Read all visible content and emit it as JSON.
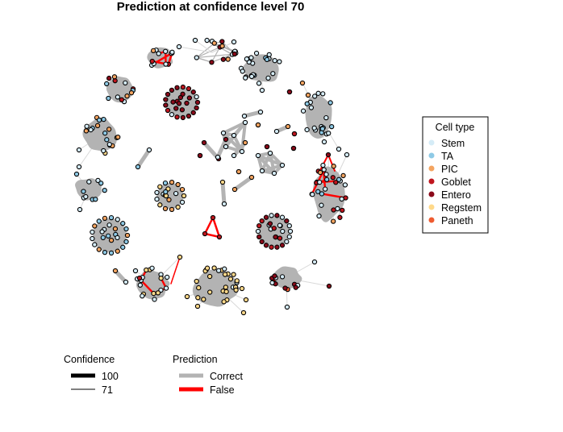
{
  "chart_data": {
    "type": "network",
    "title": "Prediction at confidence level 70",
    "legends": {
      "cell_type": {
        "title": "Cell type",
        "items": [
          {
            "label": "Stem",
            "color": "#d5ecf7"
          },
          {
            "label": "TA",
            "color": "#8ecae6"
          },
          {
            "label": "PIC",
            "color": "#f4a460"
          },
          {
            "label": "Goblet",
            "color": "#c0161e"
          },
          {
            "label": "Entero",
            "color": "#8b0a1a"
          },
          {
            "label": "Regstem",
            "color": "#ffd98a"
          },
          {
            "label": "Paneth",
            "color": "#ef5b30"
          }
        ]
      },
      "confidence": {
        "title": "Confidence",
        "items": [
          {
            "label": "100",
            "weight": 100
          },
          {
            "label": "71",
            "weight": 71
          }
        ]
      },
      "prediction": {
        "title": "Prediction",
        "items": [
          {
            "label": "Correct",
            "color": "#b3b3b3"
          },
          {
            "label": "False",
            "color": "#ff0000"
          }
        ]
      }
    },
    "colors": {
      "node_stroke": "#000000",
      "cluster_fill": "#b3b3b3",
      "correct_edge": "#b3b3b3",
      "false_edge": "#ff0000",
      "light_edge": "#d9d9d9"
    }
  }
}
